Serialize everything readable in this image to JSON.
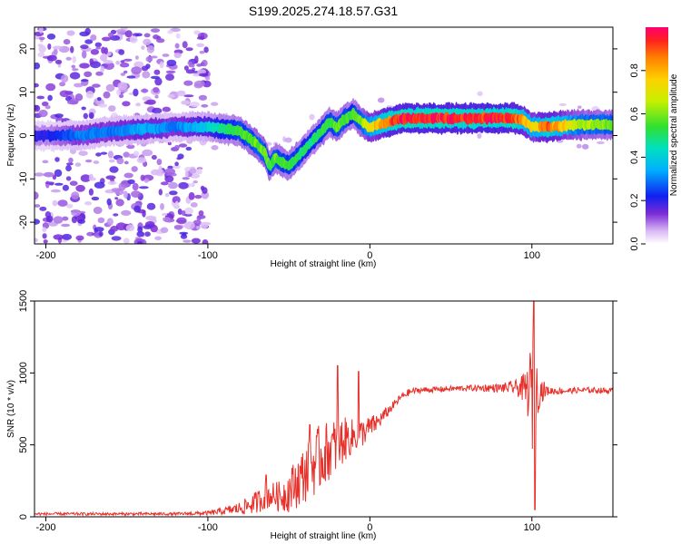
{
  "title": "S199.2025.274.18.57.G31",
  "chart_data": [
    {
      "type": "heatmap",
      "name": "spectrogram",
      "xlabel": "Height of straight line (km)",
      "ylabel": "Frequency (Hz)",
      "xlim": [
        -207,
        150
      ],
      "ylim": [
        -25,
        25
      ],
      "xticks": [
        -200,
        -100,
        0,
        100
      ],
      "yticks": [
        -20,
        -10,
        0,
        10,
        20
      ],
      "colorbar": {
        "label": "Normalized spectral amplitude",
        "range": [
          0,
          1
        ],
        "ticks": [
          0.0,
          0.2,
          0.4,
          0.6,
          0.8
        ],
        "tick_labels": [
          "0.0",
          "0.2",
          "0.4",
          "0.6",
          "0.8"
        ]
      },
      "ridge": {
        "x": [
          -200,
          -180,
          -160,
          -140,
          -120,
          -100,
          -90,
          -80,
          -70,
          -65,
          -62,
          -58,
          -55,
          -50,
          -45,
          -40,
          -35,
          -30,
          -25,
          -20,
          -15,
          -10,
          -5,
          0,
          5,
          10,
          20,
          40,
          60,
          80,
          90,
          95,
          100,
          110,
          130,
          150
        ],
        "frequency": [
          0,
          0,
          1,
          1.5,
          2,
          2,
          1.5,
          1,
          -2,
          -4,
          -7,
          -5,
          -6,
          -7,
          -5,
          -3,
          -1,
          1,
          3,
          2,
          4,
          5,
          3,
          2,
          2.5,
          3,
          4,
          4,
          4,
          4,
          4,
          3.5,
          2,
          2,
          2.5,
          2.5
        ],
        "amplitude": [
          0.2,
          0.3,
          0.3,
          0.35,
          0.3,
          0.4,
          0.5,
          0.55,
          0.6,
          0.6,
          0.55,
          0.6,
          0.55,
          0.55,
          0.55,
          0.5,
          0.5,
          0.55,
          0.55,
          0.6,
          0.55,
          0.55,
          0.6,
          0.75,
          0.8,
          0.9,
          0.98,
          0.98,
          0.95,
          0.98,
          0.95,
          0.85,
          0.75,
          0.9,
          0.65,
          0.6
        ]
      },
      "noise_region": {
        "x_from": -207,
        "x_to": -100
      }
    },
    {
      "type": "line",
      "name": "snr",
      "xlabel": "Height of straight line (km)",
      "ylabel": "SNR (10 * v/v)",
      "xlim": [
        -207,
        150
      ],
      "ylim": [
        0,
        1500
      ],
      "xticks": [
        -200,
        -100,
        0,
        100
      ],
      "yticks": [
        0,
        500,
        1000,
        1500
      ],
      "color": "#e8302a",
      "series": [
        {
          "name": "SNR",
          "x": [
            -207,
            -160,
            -120,
            -100,
            -90,
            -80,
            -70,
            -65,
            -60,
            -55,
            -50,
            -45,
            -40,
            -35,
            -30,
            -25,
            -20,
            -15,
            -10,
            -5,
            0,
            5,
            10,
            15,
            20,
            25,
            30,
            40,
            50,
            60,
            70,
            80,
            90,
            95,
            98,
            100,
            102,
            105,
            110,
            120,
            130,
            140,
            150
          ],
          "mean": [
            20,
            20,
            20,
            25,
            40,
            60,
            100,
            140,
            150,
            140,
            180,
            240,
            300,
            360,
            420,
            460,
            500,
            540,
            560,
            580,
            620,
            660,
            720,
            780,
            840,
            870,
            880,
            885,
            890,
            895,
            895,
            895,
            900,
            890,
            870,
            850,
            870,
            880,
            875,
            875,
            880,
            880,
            875
          ],
          "spread": [
            10,
            10,
            10,
            15,
            25,
            45,
            80,
            90,
            90,
            110,
            150,
            180,
            200,
            220,
            240,
            200,
            200,
            150,
            120,
            100,
            80,
            60,
            40,
            30,
            25,
            25,
            20,
            20,
            20,
            20,
            25,
            30,
            50,
            100,
            200,
            450,
            250,
            100,
            30,
            20,
            20,
            20,
            20
          ]
        }
      ],
      "annotations": {
        "peaks": [
          {
            "x": -64,
            "y": 290
          },
          {
            "x": -37,
            "y": 640
          },
          {
            "x": -20,
            "y": 1050
          },
          {
            "x": -7,
            "y": 1010
          },
          {
            "x": 101,
            "y": 1500
          },
          {
            "x": 102,
            "y": 50
          }
        ]
      }
    }
  ]
}
